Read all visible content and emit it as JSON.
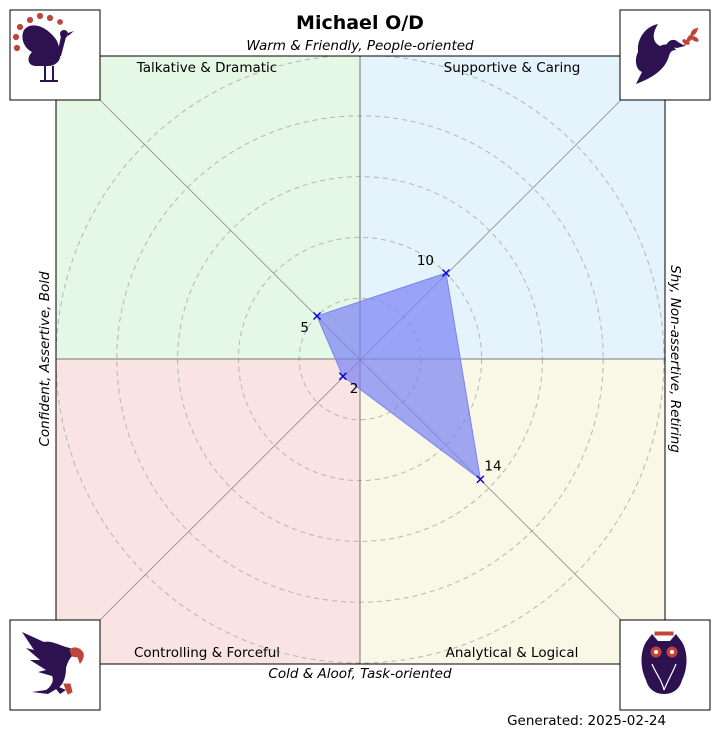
{
  "chart_data": {
    "type": "radar",
    "title": "Michael O/D",
    "axis_labels": {
      "top": "Warm & Friendly, People-oriented",
      "bottom": "Cold & Aloof, Task-oriented",
      "left": "Confident, Assertive, Bold",
      "right": "Shy, Non-assertive, Retiring"
    },
    "quadrants": [
      {
        "name": "Talkative & Dramatic",
        "position": "top-left",
        "color": "#e5f8e5"
      },
      {
        "name": "Supportive & Caring",
        "position": "top-right",
        "color": "#e5f3fd"
      },
      {
        "name": "Controlling & Forceful",
        "position": "bottom-left",
        "color": "#f9e3e3"
      },
      {
        "name": "Analytical & Logical",
        "position": "bottom-right",
        "color": "#f9f8e6"
      }
    ],
    "points": [
      {
        "direction": "top-right",
        "value": 10
      },
      {
        "direction": "bottom-right",
        "value": 14
      },
      {
        "direction": "bottom-left",
        "value": 2
      },
      {
        "direction": "top-left",
        "value": 5
      }
    ],
    "rings": [
      5,
      10,
      15,
      20,
      25
    ],
    "max_value": 25,
    "polygon_color": "#7b82f4",
    "marker_color": "#0000dd",
    "icons": [
      "peacock-icon",
      "dove-icon",
      "eagle-icon",
      "owl-icon"
    ],
    "icon_color": "#2e1150",
    "icon_accent": "#c0443a"
  },
  "footer": "Generated: 2025-02-24"
}
